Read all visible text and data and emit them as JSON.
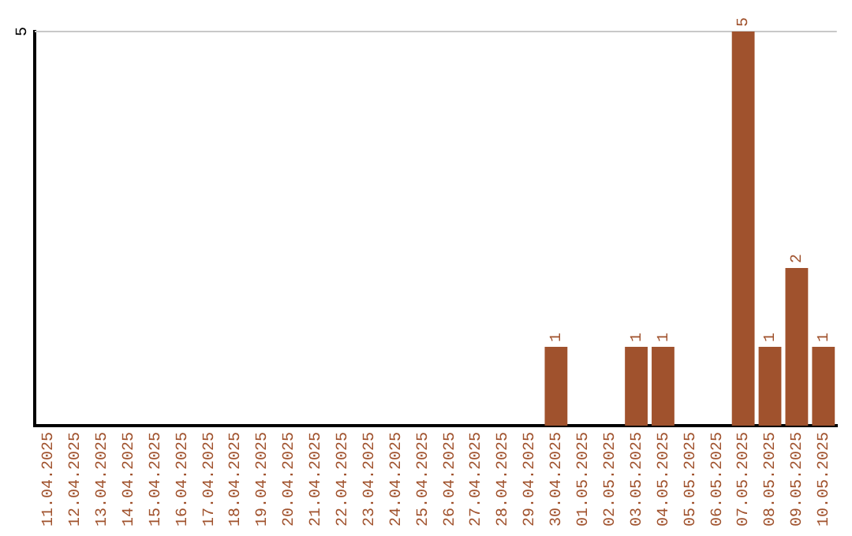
{
  "chart_data": {
    "type": "bar",
    "ylim": [
      0,
      5
    ],
    "categories": [
      "11.04.2025",
      "12.04.2025",
      "13.04.2025",
      "14.04.2025",
      "15.04.2025",
      "16.04.2025",
      "17.04.2025",
      "18.04.2025",
      "19.04.2025",
      "20.04.2025",
      "21.04.2025",
      "22.04.2025",
      "23.04.2025",
      "24.04.2025",
      "25.04.2025",
      "26.04.2025",
      "27.04.2025",
      "28.04.2025",
      "29.04.2025",
      "30.04.2025",
      "01.05.2025",
      "02.05.2025",
      "03.05.2025",
      "04.05.2025",
      "05.05.2025",
      "06.05.2025",
      "07.05.2025",
      "08.05.2025",
      "09.05.2025",
      "10.05.2025"
    ],
    "values": [
      null,
      null,
      null,
      null,
      null,
      null,
      null,
      null,
      null,
      null,
      null,
      null,
      null,
      null,
      null,
      null,
      null,
      null,
      null,
      1,
      null,
      null,
      1,
      1,
      null,
      null,
      5,
      1,
      2,
      1
    ],
    "data_labels": true,
    "color": "#a0522d",
    "ref_lines": [
      {
        "axis": "y",
        "value": 5,
        "label": "5",
        "color": "#c8c8c8"
      }
    ]
  }
}
